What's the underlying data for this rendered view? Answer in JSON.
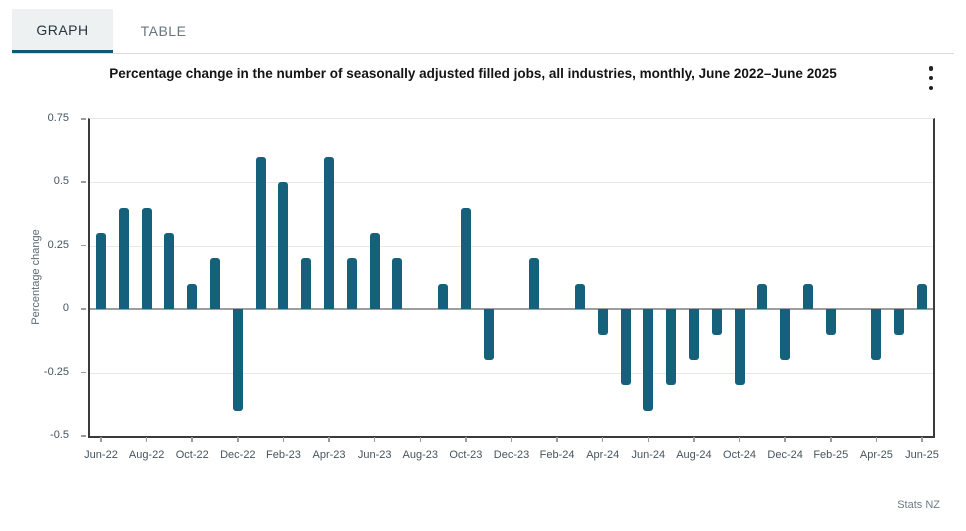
{
  "tabs": {
    "graph_label": "GRAPH",
    "table_label": "TABLE"
  },
  "header": {
    "title": "Percentage change in the number of seasonally adjusted filled jobs, all industries, monthly, June 2022–June 2025"
  },
  "footer": {
    "attribution": "Stats NZ"
  },
  "colors": {
    "bar": "#15617c",
    "active_tab_underline": "#0e5a73",
    "active_tab_bg": "#edf1f2",
    "zero_line": "#9e9e9e",
    "gridline": "#e8e8e8",
    "axis": "#3a3a3a"
  },
  "chart_data": {
    "type": "bar",
    "title": "Percentage change in the number of seasonally adjusted filled jobs, all industries, monthly, June 2022–June 2025",
    "xlabel": "",
    "ylabel": "Percentage change",
    "ylim": [
      -0.5,
      0.75
    ],
    "yticks": [
      0.75,
      0.5,
      0.25,
      0,
      -0.25,
      -0.5
    ],
    "ytick_labels": [
      "0.75",
      "0.5",
      "0.25",
      "0",
      "-0.25",
      "-0.5"
    ],
    "xtick_every": 2,
    "grid": true,
    "legend": false,
    "categories": [
      "Jun-22",
      "Jul-22",
      "Aug-22",
      "Sep-22",
      "Oct-22",
      "Nov-22",
      "Dec-22",
      "Jan-23",
      "Feb-23",
      "Mar-23",
      "Apr-23",
      "May-23",
      "Jun-23",
      "Jul-23",
      "Aug-23",
      "Sep-23",
      "Oct-23",
      "Nov-23",
      "Dec-23",
      "Jan-24",
      "Feb-24",
      "Mar-24",
      "Apr-24",
      "May-24",
      "Jun-24",
      "Jul-24",
      "Aug-24",
      "Sep-24",
      "Oct-24",
      "Nov-24",
      "Dec-24",
      "Jan-25",
      "Feb-25",
      "Mar-25",
      "Apr-25",
      "May-25",
      "Jun-25"
    ],
    "values": [
      0.3,
      0.4,
      0.4,
      0.3,
      0.1,
      0.2,
      -0.4,
      0.6,
      0.5,
      0.2,
      0.6,
      0.2,
      0.3,
      0.2,
      0.0,
      0.1,
      0.4,
      -0.2,
      0.0,
      0.2,
      0.0,
      0.1,
      -0.1,
      -0.3,
      -0.4,
      -0.3,
      -0.2,
      -0.1,
      -0.3,
      0.1,
      -0.2,
      0.1,
      -0.1,
      0.0,
      -0.2,
      -0.1,
      0.1
    ]
  }
}
